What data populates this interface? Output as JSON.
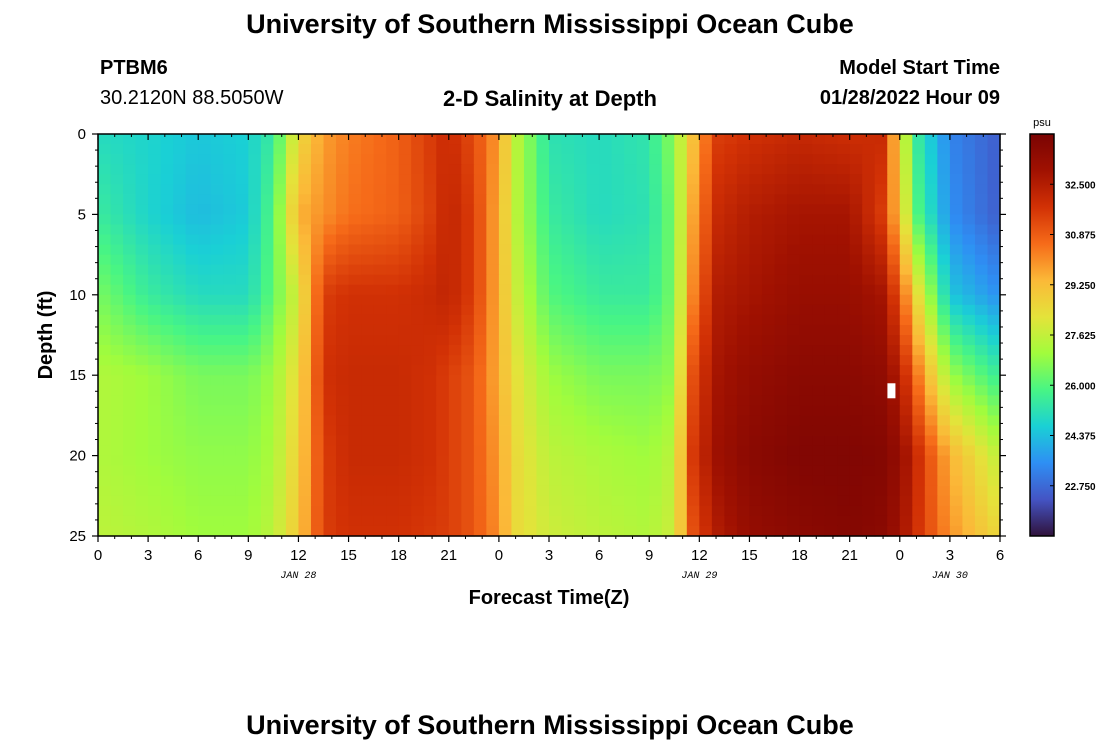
{
  "header": {
    "title": "University of Southern Mississippi Ocean Cube",
    "station_id": "PTBM6",
    "station_coords": "30.2120N  88.5050W",
    "plot_title": "2-D Salinity at Depth",
    "model_start_label": "Model Start Time",
    "model_start_value": "01/28/2022 Hour 09"
  },
  "footer": {
    "title": "University of Southern Mississippi Ocean Cube"
  },
  "colorbar": {
    "unit": "psu",
    "min": 21.125,
    "max": 34.125,
    "ticks": [
      "32.500",
      "30.875",
      "29.250",
      "27.625",
      "26.000",
      "24.375",
      "22.750"
    ],
    "palette": [
      "#30123b",
      "#4454c4",
      "#2e8ff4",
      "#1ad0d5",
      "#48f584",
      "#a2fc3c",
      "#e4e33a",
      "#fbb938",
      "#f66b19",
      "#d23105",
      "#a01101",
      "#7a0403"
    ]
  },
  "chart_data": {
    "type": "heatmap",
    "title": "2-D Salinity at Depth",
    "xlabel": "Forecast Time(Z)",
    "ylabel": "Depth (ft)",
    "units": "psu",
    "x_hours_from_start": [
      0,
      3,
      6,
      9,
      12,
      15,
      18,
      21,
      24,
      27,
      30,
      33,
      36,
      39,
      42,
      45,
      48,
      51,
      54
    ],
    "x_tick_labels": [
      "0",
      "3",
      "6",
      "9",
      "12",
      "15",
      "18",
      "21",
      "0",
      "3",
      "6",
      "9",
      "12",
      "15",
      "18",
      "21",
      "0",
      "3",
      "6"
    ],
    "xlim": [
      0,
      54
    ],
    "date_labels": [
      {
        "label": "JAN 28",
        "hour": 12
      },
      {
        "label": "JAN 29",
        "hour": 36
      },
      {
        "label": "JAN 30",
        "hour": 51
      }
    ],
    "y_ticks": [
      0,
      5,
      10,
      15,
      20,
      25
    ],
    "ylim": [
      0,
      25
    ],
    "depths_ft": [
      0,
      5,
      10,
      15,
      20,
      25
    ],
    "hours": [
      0,
      3,
      6,
      9,
      10.5,
      12,
      13.5,
      15,
      18,
      20,
      21,
      22.5,
      24,
      25,
      27,
      30,
      33,
      34.5,
      35.5,
      37,
      39,
      42,
      45,
      47,
      48,
      49,
      51,
      54
    ],
    "values": [
      [
        25.0,
        24.8,
        24.5,
        24.7,
        25.5,
        28.5,
        29.8,
        30.3,
        30.8,
        31.6,
        32.0,
        31.2,
        29.8,
        27.5,
        25.2,
        25.0,
        25.3,
        26.8,
        29.0,
        31.5,
        31.8,
        32.1,
        31.9,
        32.0,
        28.5,
        25.5,
        23.3,
        22.5
      ],
      [
        25.5,
        24.8,
        24.3,
        24.6,
        26.0,
        29.5,
        30.0,
        30.5,
        30.8,
        31.5,
        32.2,
        31.5,
        29.5,
        27.5,
        25.5,
        25.0,
        25.2,
        26.5,
        29.5,
        32.0,
        32.5,
        32.8,
        32.8,
        31.5,
        29.0,
        26.0,
        23.5,
        22.5
      ],
      [
        26.5,
        25.5,
        25.0,
        25.0,
        26.2,
        28.0,
        31.5,
        31.8,
        31.8,
        32.0,
        32.2,
        31.5,
        29.5,
        27.8,
        26.0,
        25.5,
        25.5,
        26.5,
        30.0,
        32.5,
        32.8,
        33.2,
        33.2,
        32.8,
        31.0,
        28.5,
        24.5,
        23.5
      ],
      [
        27.3,
        27.0,
        26.5,
        26.5,
        27.0,
        28.5,
        31.8,
        32.0,
        32.0,
        31.8,
        31.5,
        31.0,
        29.5,
        28.3,
        27.0,
        26.5,
        26.5,
        26.8,
        31.0,
        32.8,
        33.3,
        33.6,
        33.6,
        33.4,
        32.5,
        30.5,
        27.0,
        25.5
      ],
      [
        27.3,
        27.0,
        26.8,
        26.8,
        27.2,
        28.8,
        31.5,
        32.0,
        32.0,
        31.8,
        31.5,
        31.0,
        29.8,
        28.5,
        27.5,
        27.2,
        27.0,
        27.5,
        31.5,
        33.0,
        33.6,
        33.9,
        33.9,
        33.8,
        33.3,
        32.0,
        29.5,
        27.5
      ],
      [
        27.5,
        27.3,
        27.0,
        27.0,
        27.5,
        29.0,
        31.5,
        31.8,
        31.8,
        31.6,
        31.5,
        31.0,
        30.0,
        28.5,
        27.8,
        27.5,
        27.3,
        27.8,
        31.0,
        32.5,
        33.3,
        33.6,
        33.8,
        33.6,
        33.0,
        31.8,
        30.0,
        28.5
      ]
    ],
    "missing_cell": {
      "hour": 47.5,
      "depth_ft": 16
    }
  }
}
